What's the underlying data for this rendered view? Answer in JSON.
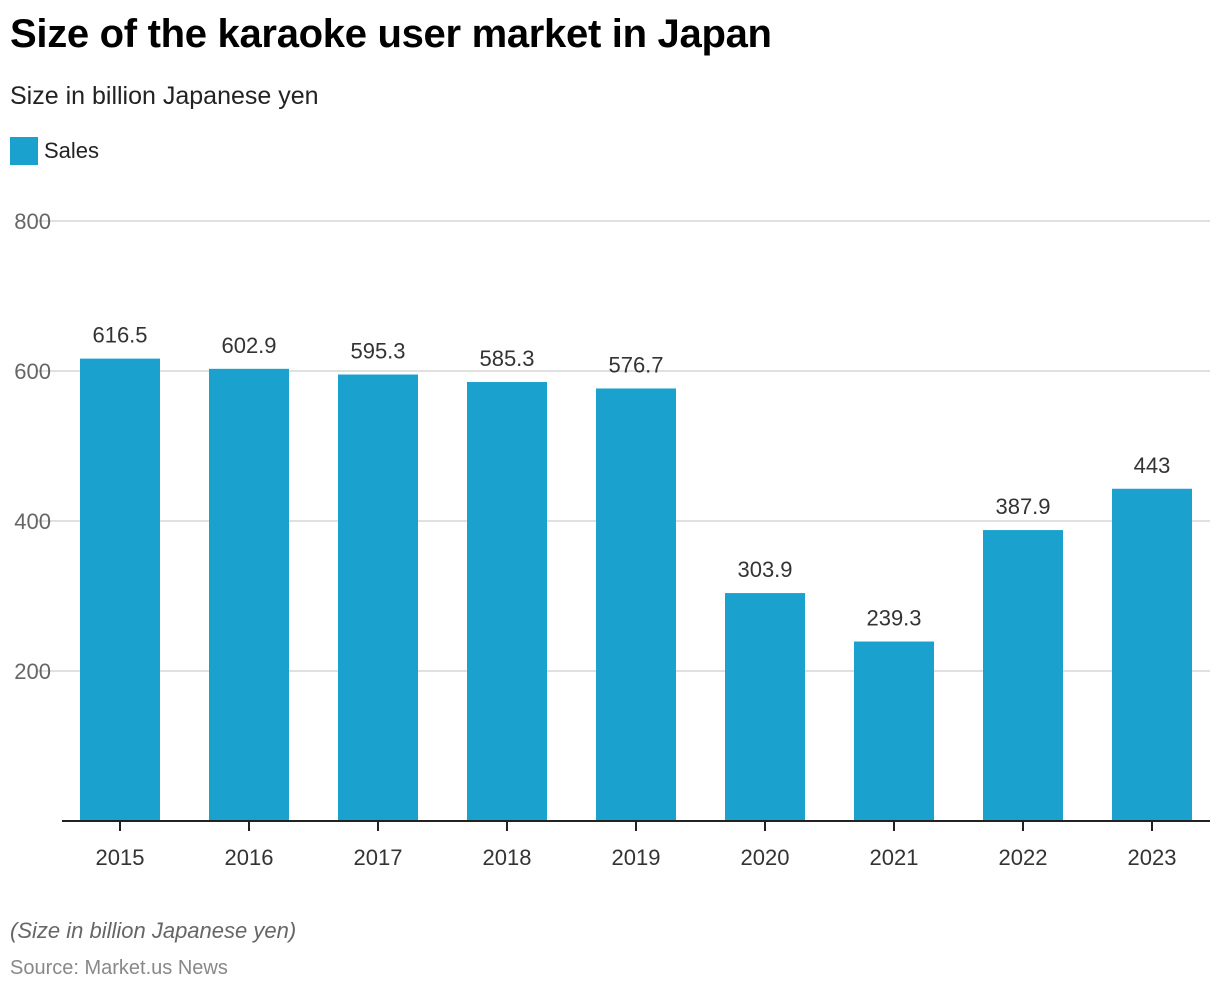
{
  "colors": {
    "bar": "#1aa1cd",
    "grid": "#d5d5d5",
    "axis": "#222222"
  },
  "chart_data": {
    "type": "bar",
    "title": "Size of the karaoke user market in Japan",
    "subtitle": "Size in billion Japanese yen",
    "legend": [
      {
        "name": "Sales",
        "position": "top-left"
      }
    ],
    "categories": [
      "2015",
      "2016",
      "2017",
      "2018",
      "2019",
      "2020",
      "2021",
      "2022",
      "2023"
    ],
    "series": [
      {
        "name": "Sales",
        "values": [
          616.5,
          602.9,
          595.3,
          585.3,
          576.7,
          303.9,
          239.3,
          387.9,
          443
        ]
      }
    ],
    "data_labels": [
      "616.5",
      "602.9",
      "595.3",
      "585.3",
      "576.7",
      "303.9",
      "239.3",
      "387.9",
      "443"
    ],
    "xlabel": "",
    "ylabel": "",
    "ylim": [
      0,
      800
    ],
    "yticks": [
      200,
      400,
      600,
      800
    ],
    "ytick_labels": [
      "200",
      "400",
      "600",
      "800"
    ],
    "grid": true
  },
  "footer": {
    "note": "(Size in billion Japanese yen)",
    "source": "Source: Market.us News"
  }
}
